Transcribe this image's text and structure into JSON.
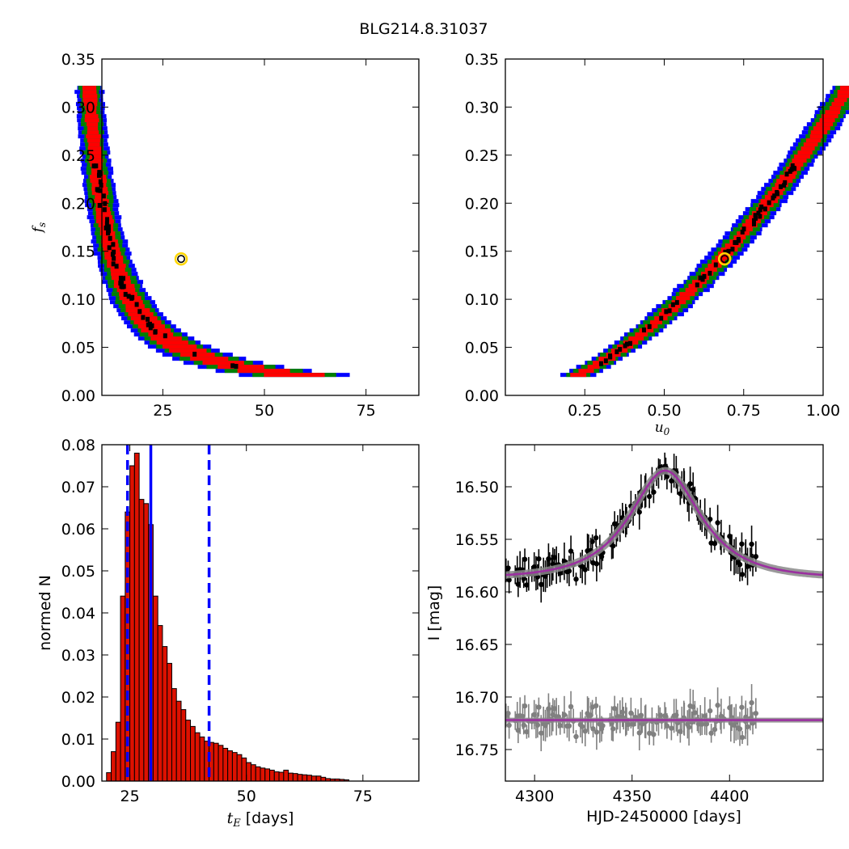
{
  "figure_title": "BLG214.8.31037",
  "colors": {
    "sigma1": "#ff0000",
    "sigma2": "#008000",
    "sigma3": "#0000ff",
    "chain": "#000000",
    "best_fit": "#ffd700",
    "model": "#9b30a0",
    "model_band": "#888888",
    "hist_bar": "#dd1100",
    "hist_line": "#0000ff",
    "baseline_data": "#808080"
  },
  "chart_data": [
    {
      "id": "tE_fs",
      "type": "heatmap",
      "xlabel": "",
      "ylabel": "f_s",
      "xlim": [
        10,
        88
      ],
      "ylim": [
        0,
        0.35
      ],
      "xticks": [
        25,
        50,
        75
      ],
      "xtick_labels": [
        "25",
        "50",
        "75"
      ],
      "yticks": [
        0,
        0.05,
        0.1,
        0.15,
        0.2,
        0.25,
        0.3,
        0.35
      ],
      "ytick_labels": [
        "0.00",
        "0.05",
        "0.10",
        "0.15",
        "0.20",
        "0.25",
        "0.30",
        "0.35"
      ],
      "relation": "fs = 3.8 / tE^1.28 (credible region band)",
      "best_fit": {
        "x": 29.5,
        "y": 0.142
      }
    },
    {
      "id": "u0_fs",
      "type": "heatmap",
      "xlabel": "u_0",
      "ylabel": "",
      "xlim": [
        0,
        1.0
      ],
      "ylim": [
        0,
        0.35
      ],
      "xticks": [
        0.25,
        0.5,
        0.75,
        1.0
      ],
      "xtick_labels": [
        "0.25",
        "0.50",
        "0.75",
        "1.00"
      ],
      "yticks": [
        0,
        0.05,
        0.1,
        0.15,
        0.2,
        0.25,
        0.3,
        0.35
      ],
      "ytick_labels": [
        "0.00",
        "0.05",
        "0.10",
        "0.15",
        "0.20",
        "0.25",
        "0.30",
        "0.35"
      ],
      "relation": "fs = 0.28 * u0^1.75 (credible region band)",
      "best_fit": {
        "x": 0.69,
        "y": 0.142
      }
    },
    {
      "id": "tE_hist",
      "type": "bar",
      "xlabel": "t_E",
      "xlabel_suffix": " [days]",
      "ylabel": "normed N",
      "xlim": [
        19,
        87
      ],
      "ylim": [
        0,
        0.08
      ],
      "xticks": [
        25,
        50,
        75
      ],
      "xtick_labels": [
        "25",
        "50",
        "75"
      ],
      "yticks": [
        0,
        0.01,
        0.02,
        0.03,
        0.04,
        0.05,
        0.06,
        0.07,
        0.08
      ],
      "ytick_labels": [
        "0.00",
        "0.01",
        "0.02",
        "0.03",
        "0.04",
        "0.05",
        "0.06",
        "0.07",
        "0.08"
      ],
      "bin_start": 20,
      "bin_width": 1,
      "values": [
        0.002,
        0.007,
        0.014,
        0.044,
        0.064,
        0.075,
        0.078,
        0.067,
        0.066,
        0.061,
        0.044,
        0.037,
        0.032,
        0.028,
        0.022,
        0.019,
        0.017,
        0.0145,
        0.013,
        0.0115,
        0.0105,
        0.0095,
        0.0092,
        0.009,
        0.0085,
        0.0078,
        0.0072,
        0.0068,
        0.0063,
        0.0055,
        0.0044,
        0.0039,
        0.0034,
        0.0031,
        0.0029,
        0.0026,
        0.0022,
        0.0021,
        0.0026,
        0.0019,
        0.0018,
        0.0016,
        0.0015,
        0.0014,
        0.0012,
        0.0012,
        0.0009,
        0.0006,
        0.0005,
        0.0005,
        0.0004,
        0.0003
      ],
      "median": 29.5,
      "interval": [
        24.5,
        42
      ]
    },
    {
      "id": "lightcurve",
      "type": "scatter",
      "xlabel": "HJD-2450000 [days]",
      "ylabel": "I [mag]",
      "xlim": [
        4285,
        4448
      ],
      "ylim": [
        16.78,
        16.46
      ],
      "y_inverted": true,
      "xticks": [
        4300,
        4350,
        4400
      ],
      "xtick_labels": [
        "4300",
        "4350",
        "4400"
      ],
      "yticks": [
        16.5,
        16.55,
        16.6,
        16.65,
        16.7,
        16.75
      ],
      "ytick_labels": [
        "16.50",
        "16.55",
        "16.60",
        "16.65",
        "16.70",
        "16.75"
      ],
      "model": {
        "t0": 4367,
        "tE": 29.5,
        "u0": 0.69,
        "fs": 0.142,
        "baseline": 16.587
      },
      "residual_offset": 16.722
    }
  ]
}
